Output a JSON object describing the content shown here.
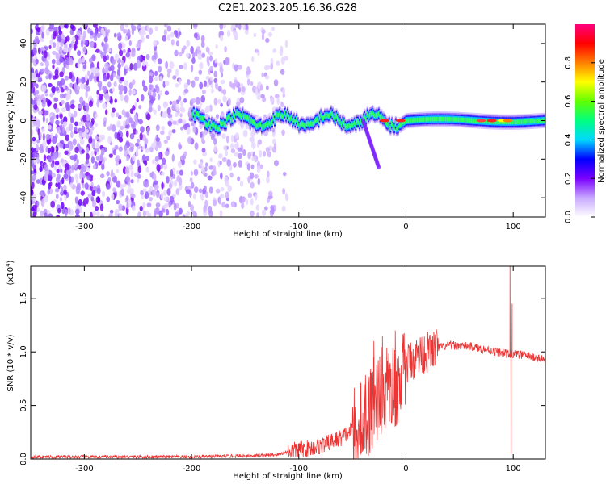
{
  "chart_data": [
    {
      "type": "heatmap",
      "title": "C2E1.2023.205.16.36.G28",
      "xlabel": "Height of straight line (km)",
      "ylabel": "Frequency (Hz)",
      "xlim": [
        -350,
        130
      ],
      "ylim": [
        -50,
        50
      ],
      "xticks": [
        -300,
        -200,
        -100,
        0,
        100
      ],
      "yticks": [
        -40,
        -20,
        0,
        20,
        40
      ],
      "colorbar": {
        "label": "Normalized spectral amplitude",
        "range": [
          0.0,
          1.0
        ],
        "ticks": [
          "0.0",
          "0.2",
          "0.4",
          "0.6",
          "0.8"
        ],
        "colors": [
          "#ffffff",
          "#c8a8ff",
          "#7a00ff",
          "#0000ff",
          "#00d8ff",
          "#00ff80",
          "#60ff00",
          "#ffff00",
          "#ff8000",
          "#ff0000",
          "#ff0080"
        ]
      },
      "features": {
        "noise_region_x": [
          -350,
          -120
        ],
        "signal_band_center_hz": 0,
        "signal_start_x": -200,
        "signal_band_halfwidth_hz": 4,
        "branch": {
          "x": [
            -40,
            -25
          ],
          "freq": [
            0,
            -25
          ]
        },
        "peak_x": 90
      },
      "grid": false
    },
    {
      "type": "line",
      "xlabel": "Height of straight line (km)",
      "ylabel": "SNR (10 * v/v)",
      "multiplier": "(x10",
      "multiplier_exp": "4",
      "multiplier_close": ")",
      "xlim": [
        -350,
        130
      ],
      "ylim": [
        0,
        1.8
      ],
      "xticks": [
        -300,
        -200,
        -100,
        0,
        100
      ],
      "yticks": [
        "0.0",
        "0.5",
        "1.0",
        "1.5"
      ],
      "color": "#ee3333",
      "series": [
        {
          "x": [
            -350,
            -300,
            -250,
            -200,
            -150,
            -120,
            -110,
            -100,
            -90,
            -80,
            -70,
            -60,
            -50,
            -45,
            -40,
            -35,
            -30,
            -25,
            -20,
            -15,
            -10,
            -5,
            0,
            5,
            10,
            20,
            30,
            40,
            50,
            60,
            70,
            80,
            90,
            95,
            97,
            100,
            110,
            120,
            130
          ],
          "values": [
            0.02,
            0.02,
            0.02,
            0.02,
            0.03,
            0.04,
            0.07,
            0.09,
            0.1,
            0.12,
            0.16,
            0.2,
            0.28,
            0.42,
            0.5,
            0.45,
            0.55,
            0.62,
            0.7,
            0.78,
            0.72,
            0.8,
            0.88,
            0.92,
            0.96,
            1.0,
            1.04,
            1.06,
            1.06,
            1.05,
            1.03,
            1.01,
            0.99,
            0.98,
            1.8,
            0.98,
            0.97,
            0.95,
            0.92
          ]
        }
      ],
      "spikes": [
        {
          "x": -30,
          "value": 1.1
        },
        {
          "x": -22,
          "value": 1.15
        },
        {
          "x": -10,
          "value": 1.2
        },
        {
          "x": 97,
          "value": 1.8
        },
        {
          "x": 99,
          "value": 1.45
        },
        {
          "x": 98,
          "value": 0.05
        }
      ],
      "grid": false
    }
  ]
}
